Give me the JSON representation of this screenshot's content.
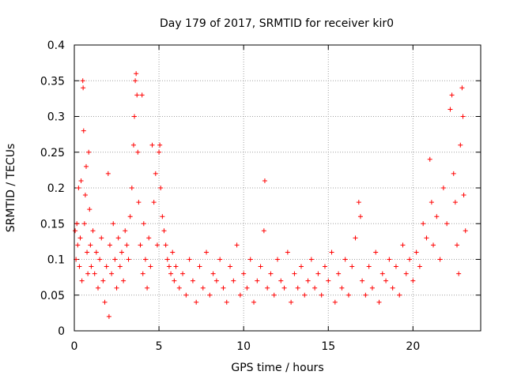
{
  "chart_data": {
    "type": "scatter",
    "title": "Day 179 of 2017, SRMTID for receiver kir0",
    "xlabel": "GPS time / hours",
    "ylabel": "SRMTID / TECUs",
    "xlim": [
      0,
      24
    ],
    "ylim": [
      0,
      0.4
    ],
    "x_ticks": [
      "0",
      "5",
      "10",
      "15",
      "20"
    ],
    "y_ticks": [
      "0",
      "0.05",
      "0.1",
      "0.15",
      "0.2",
      "0.25",
      "0.3",
      "0.35",
      "0.4"
    ],
    "grid": true,
    "marker": "plus",
    "color": "#ff0000",
    "series": [
      {
        "values": [
          [
            0.05,
            0.14
          ],
          [
            0.1,
            0.1
          ],
          [
            0.15,
            0.15
          ],
          [
            0.2,
            0.12
          ],
          [
            0.25,
            0.2
          ],
          [
            0.3,
            0.09
          ],
          [
            0.35,
            0.13
          ],
          [
            0.4,
            0.21
          ],
          [
            0.45,
            0.07
          ],
          [
            0.5,
            0.35
          ],
          [
            0.52,
            0.34
          ],
          [
            0.55,
            0.28
          ],
          [
            0.6,
            0.15
          ],
          [
            0.65,
            0.19
          ],
          [
            0.7,
            0.23
          ],
          [
            0.75,
            0.11
          ],
          [
            0.8,
            0.08
          ],
          [
            0.85,
            0.25
          ],
          [
            0.9,
            0.17
          ],
          [
            0.95,
            0.12
          ],
          [
            1.0,
            0.09
          ],
          [
            1.1,
            0.14
          ],
          [
            1.2,
            0.08
          ],
          [
            1.3,
            0.11
          ],
          [
            1.4,
            0.06
          ],
          [
            1.5,
            0.1
          ],
          [
            1.6,
            0.13
          ],
          [
            1.7,
            0.07
          ],
          [
            1.8,
            0.04
          ],
          [
            1.9,
            0.09
          ],
          [
            2.0,
            0.22
          ],
          [
            2.05,
            0.02
          ],
          [
            2.1,
            0.12
          ],
          [
            2.2,
            0.08
          ],
          [
            2.3,
            0.15
          ],
          [
            2.4,
            0.1
          ],
          [
            2.5,
            0.06
          ],
          [
            2.6,
            0.13
          ],
          [
            2.7,
            0.09
          ],
          [
            2.8,
            0.11
          ],
          [
            2.9,
            0.07
          ],
          [
            3.0,
            0.14
          ],
          [
            3.1,
            0.12
          ],
          [
            3.2,
            0.1
          ],
          [
            3.3,
            0.16
          ],
          [
            3.4,
            0.2
          ],
          [
            3.5,
            0.26
          ],
          [
            3.55,
            0.3
          ],
          [
            3.6,
            0.35
          ],
          [
            3.65,
            0.36
          ],
          [
            3.7,
            0.33
          ],
          [
            3.75,
            0.25
          ],
          [
            3.8,
            0.18
          ],
          [
            3.9,
            0.12
          ],
          [
            4.0,
            0.33
          ],
          [
            4.05,
            0.08
          ],
          [
            4.1,
            0.15
          ],
          [
            4.2,
            0.1
          ],
          [
            4.3,
            0.06
          ],
          [
            4.4,
            0.13
          ],
          [
            4.5,
            0.09
          ],
          [
            4.6,
            0.26
          ],
          [
            4.7,
            0.18
          ],
          [
            4.8,
            0.22
          ],
          [
            4.9,
            0.12
          ],
          [
            5.0,
            0.25
          ],
          [
            5.05,
            0.26
          ],
          [
            5.1,
            0.2
          ],
          [
            5.2,
            0.16
          ],
          [
            5.3,
            0.14
          ],
          [
            5.4,
            0.12
          ],
          [
            5.5,
            0.1
          ],
          [
            5.6,
            0.09
          ],
          [
            5.7,
            0.08
          ],
          [
            5.8,
            0.11
          ],
          [
            5.9,
            0.07
          ],
          [
            6.0,
            0.09
          ],
          [
            6.2,
            0.06
          ],
          [
            6.4,
            0.08
          ],
          [
            6.6,
            0.05
          ],
          [
            6.8,
            0.1
          ],
          [
            7.0,
            0.07
          ],
          [
            7.2,
            0.04
          ],
          [
            7.4,
            0.09
          ],
          [
            7.6,
            0.06
          ],
          [
            7.8,
            0.11
          ],
          [
            8.0,
            0.05
          ],
          [
            8.2,
            0.08
          ],
          [
            8.4,
            0.07
          ],
          [
            8.6,
            0.1
          ],
          [
            8.8,
            0.06
          ],
          [
            9.0,
            0.04
          ],
          [
            9.2,
            0.09
          ],
          [
            9.4,
            0.07
          ],
          [
            9.6,
            0.12
          ],
          [
            9.8,
            0.05
          ],
          [
            10.0,
            0.08
          ],
          [
            10.2,
            0.06
          ],
          [
            10.4,
            0.1
          ],
          [
            10.6,
            0.04
          ],
          [
            10.8,
            0.07
          ],
          [
            11.0,
            0.09
          ],
          [
            11.2,
            0.14
          ],
          [
            11.25,
            0.21
          ],
          [
            11.4,
            0.06
          ],
          [
            11.6,
            0.08
          ],
          [
            11.8,
            0.05
          ],
          [
            12.0,
            0.1
          ],
          [
            12.2,
            0.07
          ],
          [
            12.4,
            0.06
          ],
          [
            12.6,
            0.11
          ],
          [
            12.8,
            0.04
          ],
          [
            13.0,
            0.08
          ],
          [
            13.2,
            0.06
          ],
          [
            13.4,
            0.09
          ],
          [
            13.6,
            0.05
          ],
          [
            13.8,
            0.07
          ],
          [
            14.0,
            0.1
          ],
          [
            14.2,
            0.06
          ],
          [
            14.4,
            0.08
          ],
          [
            14.6,
            0.05
          ],
          [
            14.8,
            0.09
          ],
          [
            15.0,
            0.07
          ],
          [
            15.2,
            0.11
          ],
          [
            15.4,
            0.04
          ],
          [
            15.6,
            0.08
          ],
          [
            15.8,
            0.06
          ],
          [
            16.0,
            0.1
          ],
          [
            16.2,
            0.05
          ],
          [
            16.4,
            0.09
          ],
          [
            16.6,
            0.13
          ],
          [
            16.8,
            0.18
          ],
          [
            16.9,
            0.16
          ],
          [
            17.0,
            0.07
          ],
          [
            17.2,
            0.05
          ],
          [
            17.4,
            0.09
          ],
          [
            17.6,
            0.06
          ],
          [
            17.8,
            0.11
          ],
          [
            18.0,
            0.04
          ],
          [
            18.2,
            0.08
          ],
          [
            18.4,
            0.07
          ],
          [
            18.6,
            0.1
          ],
          [
            18.8,
            0.06
          ],
          [
            19.0,
            0.09
          ],
          [
            19.2,
            0.05
          ],
          [
            19.4,
            0.12
          ],
          [
            19.6,
            0.08
          ],
          [
            19.8,
            0.1
          ],
          [
            20.0,
            0.07
          ],
          [
            20.2,
            0.11
          ],
          [
            20.4,
            0.09
          ],
          [
            20.6,
            0.15
          ],
          [
            20.8,
            0.13
          ],
          [
            21.0,
            0.24
          ],
          [
            21.1,
            0.18
          ],
          [
            21.2,
            0.12
          ],
          [
            21.4,
            0.16
          ],
          [
            21.6,
            0.1
          ],
          [
            21.8,
            0.2
          ],
          [
            22.0,
            0.15
          ],
          [
            22.2,
            0.31
          ],
          [
            22.3,
            0.33
          ],
          [
            22.4,
            0.22
          ],
          [
            22.5,
            0.18
          ],
          [
            22.6,
            0.12
          ],
          [
            22.7,
            0.08
          ],
          [
            22.8,
            0.26
          ],
          [
            22.9,
            0.34
          ],
          [
            22.95,
            0.3
          ],
          [
            23.0,
            0.19
          ],
          [
            23.1,
            0.14
          ]
        ]
      }
    ]
  }
}
